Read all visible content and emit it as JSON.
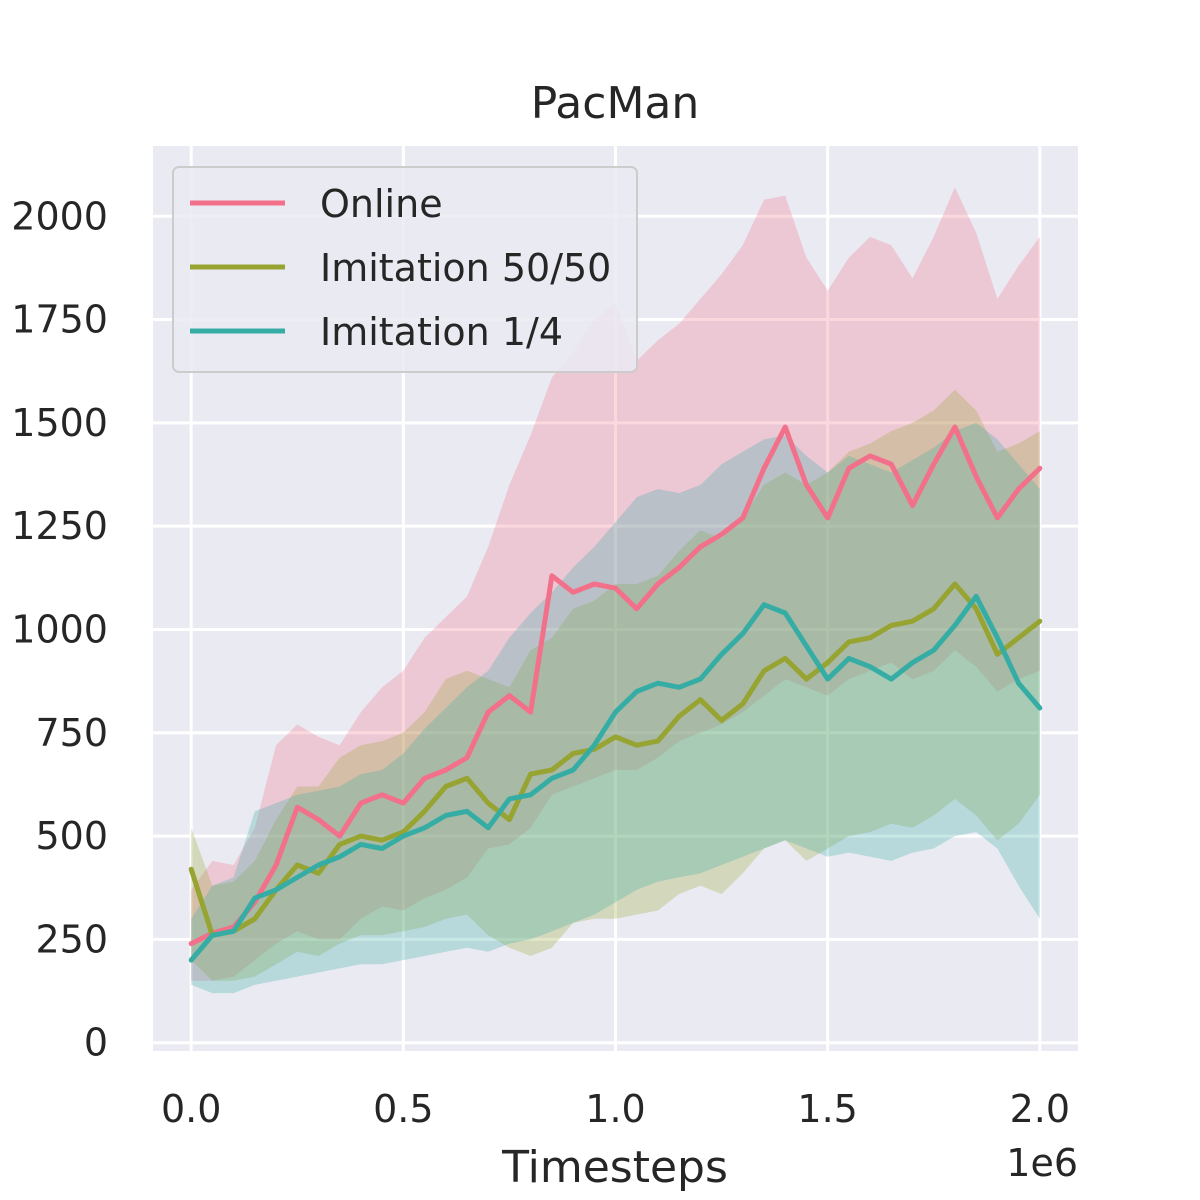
{
  "chart_data": {
    "type": "line",
    "title": "PacMan",
    "xlabel": "Timesteps",
    "ylabel": "",
    "x_offset_label": "1e6",
    "xlim": [
      -0.09,
      2.09
    ],
    "ylim": [
      -20,
      2170
    ],
    "xticks": [
      0.0,
      0.5,
      1.0,
      1.5,
      2.0
    ],
    "xtick_labels": [
      "0.0",
      "0.5",
      "1.0",
      "1.5",
      "2.0"
    ],
    "yticks": [
      0,
      250,
      500,
      750,
      1000,
      1250,
      1500,
      1750,
      2000
    ],
    "ytick_labels": [
      "0",
      "250",
      "500",
      "750",
      "1000",
      "1250",
      "1500",
      "1750",
      "2000"
    ],
    "grid": true,
    "legend_position": "top-left",
    "background": "#eaeaf2",
    "x": [
      0.0,
      0.05,
      0.1,
      0.15,
      0.2,
      0.25,
      0.3,
      0.35,
      0.4,
      0.45,
      0.5,
      0.55,
      0.6,
      0.65,
      0.7,
      0.75,
      0.8,
      0.85,
      0.9,
      0.95,
      1.0,
      1.05,
      1.1,
      1.15,
      1.2,
      1.25,
      1.3,
      1.35,
      1.4,
      1.45,
      1.5,
      1.55,
      1.6,
      1.65,
      1.7,
      1.75,
      1.8,
      1.85,
      1.9,
      1.95,
      2.0
    ],
    "series": [
      {
        "name": "Online",
        "color": "#f2708a",
        "values": [
          240,
          265,
          280,
          340,
          430,
          570,
          540,
          500,
          580,
          600,
          580,
          640,
          660,
          690,
          800,
          840,
          800,
          1130,
          1090,
          1110,
          1100,
          1050,
          1110,
          1150,
          1200,
          1230,
          1270,
          1390,
          1490,
          1350,
          1270,
          1390,
          1420,
          1400,
          1300,
          1400,
          1490,
          1370,
          1270,
          1340,
          1390
        ],
        "upper": [
          370,
          440,
          430,
          520,
          720,
          770,
          740,
          720,
          800,
          860,
          900,
          980,
          1030,
          1080,
          1200,
          1350,
          1470,
          1610,
          1670,
          1750,
          1790,
          1650,
          1700,
          1740,
          1800,
          1860,
          1930,
          2040,
          2050,
          1900,
          1820,
          1900,
          1950,
          1930,
          1850,
          1950,
          2070,
          1960,
          1800,
          1880,
          1950
        ],
        "lower": [
          150,
          150,
          160,
          200,
          240,
          270,
          250,
          250,
          300,
          330,
          320,
          350,
          370,
          400,
          470,
          480,
          520,
          600,
          620,
          640,
          660,
          660,
          690,
          730,
          750,
          770,
          800,
          840,
          880,
          860,
          840,
          880,
          900,
          920,
          880,
          900,
          950,
          910,
          850,
          880,
          900
        ]
      },
      {
        "name": "Imitation 50/50",
        "color": "#97a431",
        "values": [
          420,
          260,
          270,
          300,
          370,
          430,
          410,
          480,
          500,
          490,
          510,
          560,
          620,
          640,
          580,
          540,
          650,
          660,
          700,
          710,
          740,
          720,
          730,
          790,
          830,
          780,
          820,
          900,
          930,
          880,
          920,
          970,
          980,
          1010,
          1020,
          1050,
          1110,
          1050,
          940,
          980,
          1020
        ],
        "upper": [
          520,
          380,
          390,
          440,
          540,
          620,
          620,
          690,
          720,
          730,
          750,
          800,
          880,
          900,
          880,
          860,
          950,
          980,
          1050,
          1070,
          1110,
          1110,
          1130,
          1190,
          1240,
          1220,
          1270,
          1350,
          1380,
          1350,
          1380,
          1430,
          1450,
          1480,
          1500,
          1530,
          1580,
          1530,
          1430,
          1450,
          1480
        ],
        "lower": [
          200,
          150,
          150,
          160,
          190,
          220,
          210,
          240,
          260,
          260,
          270,
          280,
          300,
          310,
          260,
          230,
          210,
          230,
          290,
          300,
          300,
          310,
          320,
          360,
          380,
          360,
          410,
          470,
          490,
          440,
          470,
          500,
          510,
          530,
          520,
          550,
          590,
          550,
          490,
          530,
          600
        ]
      },
      {
        "name": "Imitation 1/4",
        "color": "#36ada4",
        "values": [
          200,
          260,
          270,
          350,
          370,
          400,
          430,
          450,
          480,
          470,
          500,
          520,
          550,
          560,
          520,
          590,
          600,
          640,
          660,
          720,
          800,
          850,
          870,
          860,
          880,
          940,
          990,
          1060,
          1040,
          960,
          880,
          930,
          910,
          880,
          920,
          950,
          1010,
          1080,
          980,
          870,
          810
        ],
        "upper": [
          300,
          380,
          400,
          560,
          580,
          600,
          610,
          620,
          650,
          660,
          700,
          760,
          810,
          860,
          900,
          980,
          1040,
          1090,
          1150,
          1200,
          1260,
          1320,
          1340,
          1330,
          1350,
          1400,
          1430,
          1460,
          1470,
          1420,
          1380,
          1420,
          1400,
          1380,
          1410,
          1440,
          1480,
          1500,
          1460,
          1400,
          1340
        ],
        "lower": [
          140,
          120,
          120,
          140,
          150,
          160,
          170,
          180,
          190,
          190,
          200,
          210,
          220,
          230,
          220,
          240,
          250,
          270,
          290,
          310,
          340,
          370,
          390,
          400,
          410,
          430,
          450,
          470,
          490,
          470,
          450,
          460,
          450,
          440,
          460,
          470,
          500,
          510,
          470,
          380,
          300
        ]
      }
    ]
  }
}
